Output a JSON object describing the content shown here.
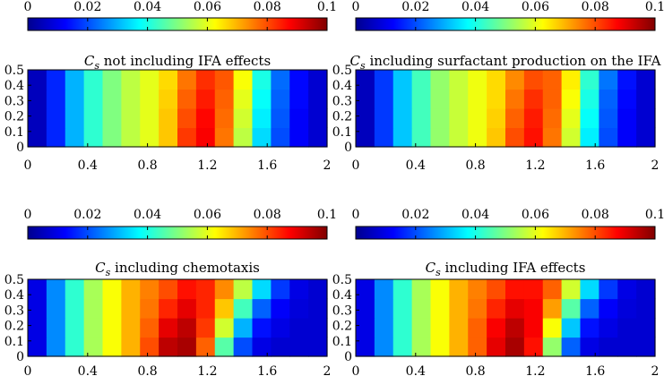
{
  "colormap": "jet",
  "colorbar": {
    "range": [
      0,
      0.1
    ],
    "tick_values": [
      0,
      0.02,
      0.04,
      0.06,
      0.08,
      0.1
    ],
    "tick_labels": [
      "0",
      "0.02",
      "0.04",
      "0.06",
      "0.08",
      "0.1"
    ]
  },
  "chart_data": [
    {
      "type": "heatmap",
      "title_symbol": "C",
      "title_subscript": "s",
      "title_text": " not including IFA effects",
      "x_ticks": [
        "0",
        "0.4",
        "0.8",
        "1.2",
        "1.6",
        "2"
      ],
      "y_ticks": [
        "0",
        "0.1",
        "0.2",
        "0.3",
        "0.4",
        "0.5"
      ],
      "xlim": [
        0,
        2
      ],
      "ylim": [
        0,
        0.5
      ],
      "clim": [
        0,
        0.1
      ],
      "x_centers": [
        0.0625,
        0.1875,
        0.3125,
        0.4375,
        0.5625,
        0.6875,
        0.8125,
        0.9375,
        1.0625,
        1.1875,
        1.3125,
        1.4375,
        1.5625,
        1.6875,
        1.8125,
        1.9375
      ],
      "y_centers": [
        0.0625,
        0.1875,
        0.3125,
        0.4375
      ],
      "values": [
        [
          0.006,
          0.016,
          0.03,
          0.042,
          0.05,
          0.056,
          0.06,
          0.068,
          0.082,
          0.088,
          0.076,
          0.056,
          0.034,
          0.02,
          0.012,
          0.008
        ],
        [
          0.006,
          0.016,
          0.03,
          0.042,
          0.05,
          0.056,
          0.06,
          0.068,
          0.08,
          0.087,
          0.077,
          0.058,
          0.036,
          0.021,
          0.012,
          0.008
        ],
        [
          0.006,
          0.016,
          0.03,
          0.042,
          0.05,
          0.056,
          0.06,
          0.067,
          0.078,
          0.085,
          0.078,
          0.06,
          0.038,
          0.022,
          0.013,
          0.008
        ],
        [
          0.006,
          0.016,
          0.03,
          0.042,
          0.05,
          0.056,
          0.06,
          0.066,
          0.076,
          0.083,
          0.079,
          0.062,
          0.04,
          0.023,
          0.013,
          0.008
        ]
      ]
    },
    {
      "type": "heatmap",
      "title_symbol": "C",
      "title_subscript": "s",
      "title_text": " including surfactant production on the IFA",
      "x_ticks": [
        "0",
        "0.4",
        "0.8",
        "1.2",
        "1.6",
        "2"
      ],
      "y_ticks": [
        "0",
        "0.1",
        "0.2",
        "0.3",
        "0.4",
        "0.5"
      ],
      "xlim": [
        0,
        2
      ],
      "ylim": [
        0,
        0.5
      ],
      "clim": [
        0,
        0.1
      ],
      "x_centers": [
        0.0625,
        0.1875,
        0.3125,
        0.4375,
        0.5625,
        0.6875,
        0.8125,
        0.9375,
        1.0625,
        1.1875,
        1.3125,
        1.4375,
        1.5625,
        1.6875,
        1.8125,
        1.9375
      ],
      "y_centers": [
        0.0625,
        0.1875,
        0.3125,
        0.4375
      ],
      "values": [
        [
          0.006,
          0.018,
          0.032,
          0.044,
          0.052,
          0.057,
          0.061,
          0.068,
          0.08,
          0.086,
          0.076,
          0.058,
          0.036,
          0.02,
          0.012,
          0.008
        ],
        [
          0.006,
          0.018,
          0.032,
          0.044,
          0.052,
          0.057,
          0.061,
          0.067,
          0.078,
          0.085,
          0.077,
          0.06,
          0.038,
          0.021,
          0.012,
          0.008
        ],
        [
          0.006,
          0.018,
          0.032,
          0.044,
          0.052,
          0.057,
          0.061,
          0.066,
          0.076,
          0.083,
          0.078,
          0.062,
          0.04,
          0.022,
          0.013,
          0.008
        ],
        [
          0.006,
          0.018,
          0.032,
          0.044,
          0.052,
          0.057,
          0.061,
          0.066,
          0.074,
          0.08,
          0.078,
          0.064,
          0.042,
          0.024,
          0.014,
          0.008
        ]
      ]
    },
    {
      "type": "heatmap",
      "title_symbol": "C",
      "title_subscript": "s",
      "title_text": " including chemotaxis",
      "x_ticks": [
        "0",
        "0.4",
        "0.8",
        "1.2",
        "1.6",
        "2"
      ],
      "y_ticks": [
        "0",
        "0.1",
        "0.2",
        "0.3",
        "0.4",
        "0.5"
      ],
      "xlim": [
        0,
        2
      ],
      "ylim": [
        0,
        0.5
      ],
      "clim": [
        0,
        0.1
      ],
      "x_centers": [
        0.0625,
        0.1875,
        0.3125,
        0.4375,
        0.5625,
        0.6875,
        0.8125,
        0.9375,
        1.0625,
        1.1875,
        1.3125,
        1.4375,
        1.5625,
        1.6875,
        1.8125,
        1.9375
      ],
      "y_centers": [
        0.0625,
        0.1875,
        0.3125,
        0.4375
      ],
      "values": [
        [
          0.01,
          0.026,
          0.042,
          0.054,
          0.062,
          0.07,
          0.08,
          0.094,
          0.096,
          0.078,
          0.046,
          0.02,
          0.01,
          0.008,
          0.008,
          0.008
        ],
        [
          0.01,
          0.026,
          0.042,
          0.054,
          0.062,
          0.07,
          0.078,
          0.09,
          0.094,
          0.082,
          0.058,
          0.03,
          0.014,
          0.01,
          0.008,
          0.008
        ],
        [
          0.01,
          0.026,
          0.042,
          0.054,
          0.062,
          0.07,
          0.076,
          0.084,
          0.09,
          0.084,
          0.068,
          0.044,
          0.022,
          0.012,
          0.009,
          0.008
        ],
        [
          0.01,
          0.026,
          0.042,
          0.054,
          0.062,
          0.07,
          0.075,
          0.08,
          0.086,
          0.084,
          0.074,
          0.056,
          0.034,
          0.018,
          0.01,
          0.008
        ]
      ]
    },
    {
      "type": "heatmap",
      "title_symbol": "C",
      "title_subscript": "s",
      "title_text": " including IFA effects",
      "x_ticks": [
        "0",
        "0.4",
        "0.8",
        "1.2",
        "1.6",
        "2"
      ],
      "y_ticks": [
        "0",
        "0.1",
        "0.2",
        "0.3",
        "0.4",
        "0.5"
      ],
      "xlim": [
        0,
        2
      ],
      "ylim": [
        0,
        0.5
      ],
      "clim": [
        0,
        0.1
      ],
      "x_centers": [
        0.0625,
        0.1875,
        0.3125,
        0.4375,
        0.5625,
        0.6875,
        0.8125,
        0.9375,
        1.0625,
        1.1875,
        1.3125,
        1.4375,
        1.5625,
        1.6875,
        1.8125,
        1.9375
      ],
      "y_centers": [
        0.0625,
        0.1875,
        0.3125,
        0.4375
      ],
      "values": [
        [
          0.01,
          0.026,
          0.042,
          0.054,
          0.062,
          0.07,
          0.078,
          0.09,
          0.096,
          0.086,
          0.052,
          0.022,
          0.01,
          0.008,
          0.008,
          0.008
        ],
        [
          0.01,
          0.026,
          0.042,
          0.054,
          0.062,
          0.07,
          0.078,
          0.088,
          0.094,
          0.088,
          0.062,
          0.032,
          0.014,
          0.01,
          0.008,
          0.008
        ],
        [
          0.01,
          0.026,
          0.042,
          0.054,
          0.062,
          0.07,
          0.076,
          0.084,
          0.09,
          0.088,
          0.072,
          0.046,
          0.022,
          0.012,
          0.009,
          0.008
        ],
        [
          0.01,
          0.026,
          0.042,
          0.054,
          0.062,
          0.07,
          0.075,
          0.08,
          0.086,
          0.086,
          0.078,
          0.058,
          0.034,
          0.018,
          0.01,
          0.008
        ]
      ]
    }
  ]
}
